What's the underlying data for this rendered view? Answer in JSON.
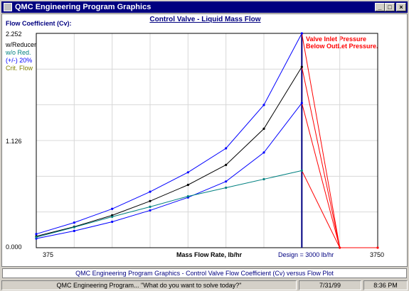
{
  "window": {
    "title": "QMC Engineering Program Graphics",
    "minimize": "_",
    "maximize": "□",
    "close": "×"
  },
  "chart_labels": {
    "title": "Control Valve - Liquid Mass Flow",
    "y_title": "Flow Coefficient (Cv):",
    "y_max": "2.252",
    "y_mid": "1.126",
    "y_min": "0.000",
    "legend": [
      {
        "text": "w/Reducer",
        "color": "#000000"
      },
      {
        "text": "w/o Red.",
        "color": "#008080"
      },
      {
        "text": "(+/-) 20%",
        "color": "#0000ff"
      },
      {
        "text": "Crit. Flow",
        "color": "#808000"
      }
    ],
    "x_min": "375",
    "x_max": "3750",
    "x_label": "Mass Flow Rate,  lb/hr",
    "design": "Design = 3000  lb/hr",
    "annotation_line1": "Valve Inlet Pressure",
    "annotation_line2": "Below OutLet Pressure."
  },
  "chart_data": {
    "type": "line",
    "title": "Control Valve - Liquid Mass Flow",
    "xlabel": "Mass Flow Rate,  lb/hr",
    "ylabel": "Flow Coefficient (Cv):",
    "xlim": [
      375,
      3750
    ],
    "ylim": [
      0,
      2.252
    ],
    "grid": true,
    "design_x": 3000,
    "x": [
      375,
      750,
      1125,
      1500,
      1875,
      2250,
      2625,
      3000
    ],
    "series": [
      {
        "name": "w/Reducer",
        "color": "#000000",
        "values": [
          0.12,
          0.22,
          0.34,
          0.49,
          0.66,
          0.87,
          1.25,
          1.9
        ]
      },
      {
        "name": "(+/-) 20%",
        "color": "#0000ff",
        "values": [
          0.144,
          0.264,
          0.408,
          0.588,
          0.792,
          1.044,
          1.5,
          2.252
        ]
      },
      {
        "name": "(+/-) 20%",
        "color": "#0000ff",
        "values": [
          0.096,
          0.176,
          0.272,
          0.392,
          0.528,
          0.696,
          1.0,
          1.52
        ]
      },
      {
        "name": "w/o Red.",
        "color": "#008080",
        "values": [
          0.11,
          0.215,
          0.325,
          0.43,
          0.54,
          0.63,
          0.72,
          0.81
        ]
      }
    ],
    "overpressure_series": {
      "color": "#ff0000",
      "x_from": 3000,
      "x_to": 3375,
      "x_end": 3750,
      "value_to": 0
    }
  },
  "caption": "QMC Engineering Program Graphics - Control Valve Flow Coefficient (Cv) versus Flow Plot",
  "statusbar": {
    "message": "QMC Engineering Program... \"What do you want to solve today?\"",
    "date": "7/31/99",
    "time": "8:36 PM"
  }
}
